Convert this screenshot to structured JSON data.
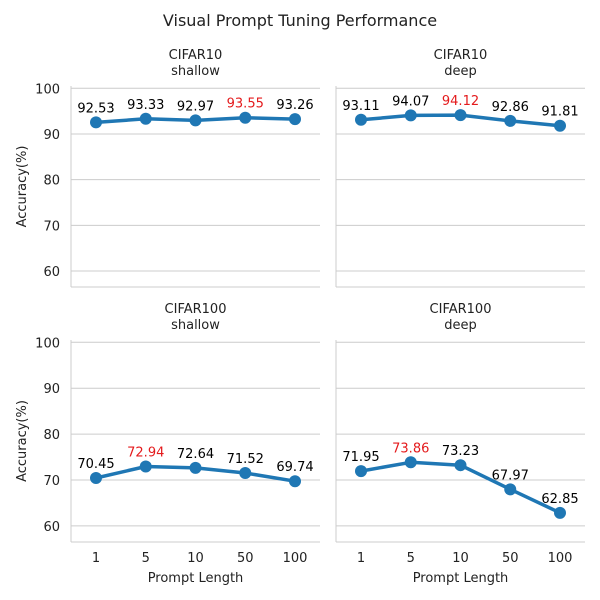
{
  "title": "Visual Prompt Tuning Performance",
  "chart_data": [
    {
      "type": "line",
      "title": "CIFAR10",
      "subtitle": "shallow",
      "categories": [
        "1",
        "5",
        "10",
        "50",
        "100"
      ],
      "values": [
        92.53,
        93.33,
        92.97,
        93.55,
        93.26
      ],
      "labels": [
        "92.53",
        "93.33",
        "92.97",
        "93.55",
        "93.26"
      ],
      "highlight_index": 3,
      "ylabel": "Accuracy(%)",
      "xlabel": "",
      "yticks": [
        "60",
        "70",
        "80",
        "90",
        "100"
      ],
      "ylim": [
        56.5,
        100.5
      ]
    },
    {
      "type": "line",
      "title": "CIFAR10",
      "subtitle": "deep",
      "categories": [
        "1",
        "5",
        "10",
        "50",
        "100"
      ],
      "values": [
        93.11,
        94.07,
        94.12,
        92.86,
        91.81
      ],
      "labels": [
        "93.11",
        "94.07",
        "94.12",
        "92.86",
        "91.81"
      ],
      "highlight_index": 2,
      "ylabel": "",
      "xlabel": "",
      "yticks": [],
      "ylim": [
        56.5,
        100.5
      ]
    },
    {
      "type": "line",
      "title": "CIFAR100",
      "subtitle": "shallow",
      "categories": [
        "1",
        "5",
        "10",
        "50",
        "100"
      ],
      "values": [
        70.45,
        72.94,
        72.64,
        71.52,
        69.74
      ],
      "labels": [
        "70.45",
        "72.94",
        "72.64",
        "71.52",
        "69.74"
      ],
      "highlight_index": 1,
      "ylabel": "Accuracy(%)",
      "xlabel": "Prompt Length",
      "yticks": [
        "60",
        "70",
        "80",
        "90",
        "100"
      ],
      "ylim": [
        56.5,
        100.5
      ]
    },
    {
      "type": "line",
      "title": "CIFAR100",
      "subtitle": "deep",
      "categories": [
        "1",
        "5",
        "10",
        "50",
        "100"
      ],
      "values": [
        71.95,
        73.86,
        73.23,
        67.97,
        62.85
      ],
      "labels": [
        "71.95",
        "73.86",
        "73.23",
        "67.97",
        "62.85"
      ],
      "highlight_index": 1,
      "ylabel": "",
      "xlabel": "Prompt Length",
      "yticks": [],
      "ylim": [
        56.5,
        100.5
      ]
    }
  ],
  "colors": {
    "line": "#1f77b4",
    "highlight": "#e41a1c",
    "label": "#000000",
    "grid": "#cccccc",
    "spine": "#cccccc"
  }
}
